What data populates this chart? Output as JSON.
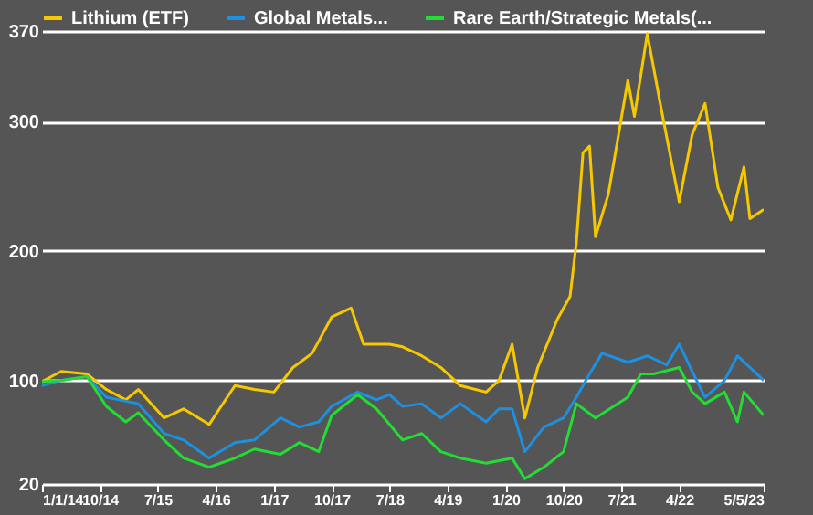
{
  "chart_data": {
    "type": "line",
    "legend": "top",
    "grid": "y",
    "xlim": [
      "2014-01-01",
      "2023-05-05"
    ],
    "xticks": [
      {
        "value": "2014-01-01",
        "label": "1/1/14"
      },
      {
        "value": "2014-10-01",
        "label": "10/14"
      },
      {
        "value": "2015-07-01",
        "label": "7/15"
      },
      {
        "value": "2016-04-01",
        "label": "4/16"
      },
      {
        "value": "2017-01-01",
        "label": "1/17"
      },
      {
        "value": "2017-10-01",
        "label": "10/17"
      },
      {
        "value": "2018-07-01",
        "label": "7/18"
      },
      {
        "value": "2019-04-01",
        "label": "4/19"
      },
      {
        "value": "2020-01-01",
        "label": "1/20"
      },
      {
        "value": "2020-10-01",
        "label": "10/20"
      },
      {
        "value": "2021-07-01",
        "label": "7/21"
      },
      {
        "value": "2022-04-01",
        "label": "4/22"
      },
      {
        "value": "2023-05-05",
        "label": "5/5/23"
      }
    ],
    "ylim": [
      20,
      370
    ],
    "yticks": [
      20,
      100,
      200,
      300,
      370
    ],
    "series": [
      {
        "name": "Lithium (ETF)",
        "color": "#f5c800",
        "x": [
          "2014-01",
          "2014-04",
          "2014-08",
          "2014-11",
          "2015-02",
          "2015-04",
          "2015-08",
          "2015-11",
          "2016-03",
          "2016-07",
          "2016-10",
          "2017-01",
          "2017-04",
          "2017-07",
          "2017-10",
          "2018-01",
          "2018-03",
          "2018-07",
          "2018-09",
          "2018-12",
          "2019-03",
          "2019-06",
          "2019-10",
          "2019-12",
          "2020-02",
          "2020-04",
          "2020-06",
          "2020-09",
          "2020-11",
          "2020-12",
          "2021-01",
          "2021-02",
          "2021-03",
          "2021-05",
          "2021-08",
          "2021-09",
          "2021-11",
          "2022-01",
          "2022-04",
          "2022-06",
          "2022-08",
          "2022-10",
          "2022-12",
          "2023-02",
          "2023-03",
          "2023-05-05"
        ],
        "values": [
          99,
          107,
          105,
          93,
          85,
          93,
          71,
          78,
          66,
          96,
          93,
          91,
          110,
          121,
          149,
          156,
          128,
          128,
          126,
          119,
          110,
          96,
          91,
          100,
          128,
          71,
          110,
          147,
          165,
          207,
          276,
          281,
          211,
          244,
          332,
          304,
          368,
          314,
          238,
          290,
          314,
          249,
          224,
          265,
          225,
          232
        ]
      },
      {
        "name": "Global Metals...",
        "color": "#1e90e0",
        "x": [
          "2014-01",
          "2014-04",
          "2014-08",
          "2014-11",
          "2015-04",
          "2015-08",
          "2015-11",
          "2016-03",
          "2016-07",
          "2016-10",
          "2017-02",
          "2017-05",
          "2017-08",
          "2017-10",
          "2018-02",
          "2018-05",
          "2018-07",
          "2018-09",
          "2018-12",
          "2019-03",
          "2019-06",
          "2019-10",
          "2019-12",
          "2020-02",
          "2020-04",
          "2020-07",
          "2020-10",
          "2020-12",
          "2021-02",
          "2021-04",
          "2021-08",
          "2021-11",
          "2022-02",
          "2022-04",
          "2022-06",
          "2022-08",
          "2022-11",
          "2023-01",
          "2023-05-05"
        ],
        "values": [
          96,
          100,
          103,
          87,
          82,
          59,
          54,
          40,
          52,
          54,
          71,
          64,
          68,
          80,
          91,
          85,
          89,
          80,
          82,
          71,
          82,
          68,
          78,
          78,
          45,
          64,
          71,
          87,
          105,
          121,
          114,
          119,
          112,
          128,
          107,
          87,
          100,
          119,
          100
        ]
      },
      {
        "name": "Rare Earth/Strategic Metals(...",
        "color": "#22dd33",
        "x": [
          "2014-01",
          "2014-04",
          "2014-08",
          "2014-11",
          "2015-02",
          "2015-04",
          "2015-08",
          "2015-11",
          "2016-03",
          "2016-07",
          "2016-10",
          "2017-02",
          "2017-05",
          "2017-08",
          "2017-10",
          "2018-02",
          "2018-05",
          "2018-09",
          "2018-12",
          "2019-03",
          "2019-06",
          "2019-10",
          "2020-02",
          "2020-04",
          "2020-07",
          "2020-10",
          "2020-12",
          "2021-03",
          "2021-08",
          "2021-10",
          "2021-12",
          "2022-04",
          "2022-06",
          "2022-08",
          "2022-11",
          "2023-01",
          "2023-02",
          "2023-05-05"
        ],
        "values": [
          99,
          100,
          103,
          80,
          68,
          75,
          54,
          40,
          33,
          40,
          47,
          43,
          52,
          45,
          73,
          89,
          78,
          54,
          59,
          45,
          40,
          36,
          40,
          24,
          33,
          45,
          82,
          71,
          87,
          105,
          105,
          110,
          91,
          82,
          91,
          68,
          91,
          73
        ]
      }
    ]
  }
}
